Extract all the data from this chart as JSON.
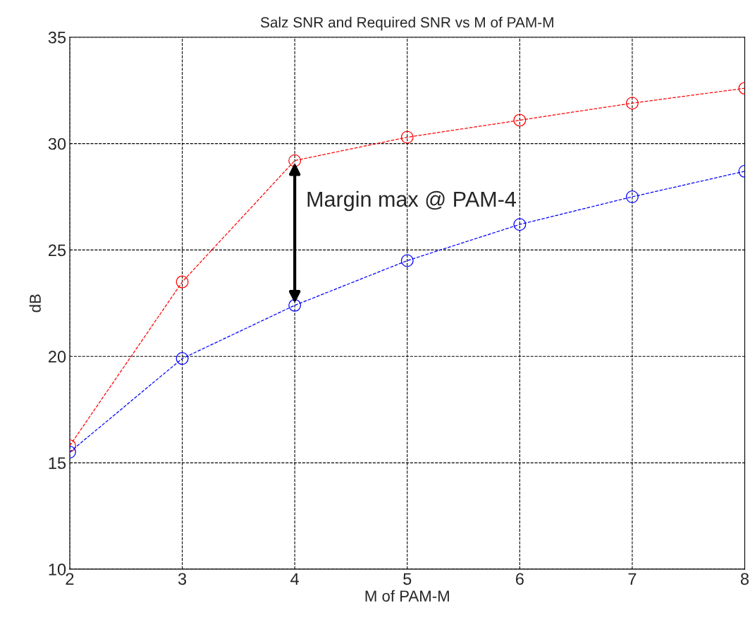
{
  "chart_data": {
    "type": "line",
    "title": "Salz SNR and Required SNR vs M of PAM-M",
    "xlabel": "M of PAM-M",
    "ylabel": "dB",
    "x": [
      2,
      3,
      4,
      5,
      6,
      7,
      8
    ],
    "series": [
      {
        "color": "#ff0000",
        "values": [
          15.8,
          23.5,
          29.2,
          30.3,
          31.1,
          31.9,
          32.6
        ]
      },
      {
        "color": "#0000ff",
        "values": [
          15.5,
          19.9,
          22.4,
          24.5,
          26.2,
          27.5,
          28.7
        ]
      }
    ],
    "annotations": [
      {
        "text": "Margin max @ PAM-4",
        "x": 4,
        "y": 29.2
      }
    ],
    "xlim": [
      2,
      8
    ],
    "xticks": [
      2,
      3,
      4,
      5,
      6,
      7,
      8
    ],
    "ylim": [
      10,
      35
    ],
    "yticks": [
      10,
      15,
      20,
      25,
      30,
      35
    ],
    "grid": true,
    "marker": "circle",
    "line_style": "dashed",
    "legend": false
  }
}
